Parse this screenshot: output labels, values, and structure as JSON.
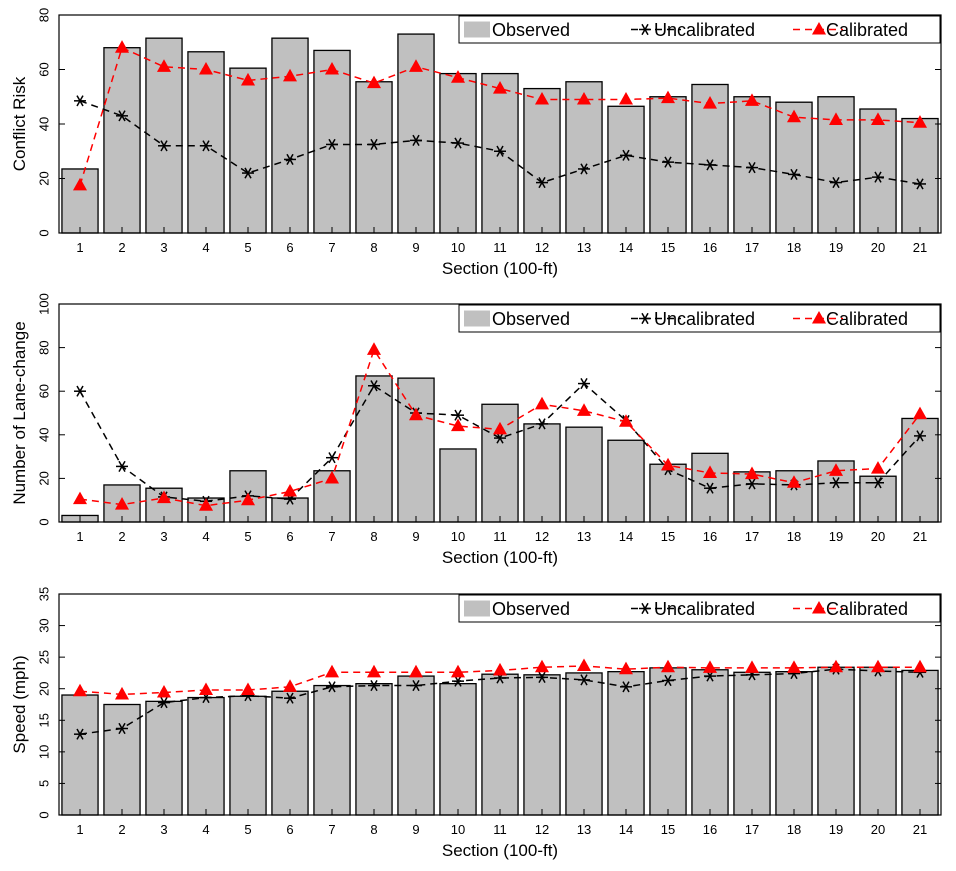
{
  "legend_labels": {
    "observed": "Observed",
    "uncalibrated": "Uncalibrated",
    "calibrated": "Calibrated"
  },
  "colors": {
    "observed_bar": "#c0c0c0",
    "bar_edge": "#000000",
    "uncalibrated": "#000000",
    "calibrated": "#ff0000"
  },
  "chart_data": [
    {
      "type": "bar",
      "xlabel": "Section (100-ft)",
      "ylabel": "Conflict Risk",
      "categories": [
        "1",
        "2",
        "3",
        "4",
        "5",
        "6",
        "7",
        "8",
        "9",
        "10",
        "11",
        "12",
        "13",
        "14",
        "15",
        "16",
        "17",
        "18",
        "19",
        "20",
        "21"
      ],
      "ylim": [
        0,
        80
      ],
      "yticks": [
        0,
        20,
        40,
        60,
        80
      ],
      "legend": "top-right",
      "grid": false,
      "series": [
        {
          "name": "Observed",
          "type": "bar",
          "values": [
            23.5,
            68,
            71.5,
            66.5,
            60.5,
            71.5,
            67,
            55.5,
            73,
            58.5,
            58.5,
            53,
            55.5,
            46.5,
            50,
            54.5,
            50,
            48,
            50,
            45.5,
            42
          ]
        },
        {
          "name": "Uncalibrated",
          "type": "line",
          "values": [
            48.5,
            43,
            32,
            32,
            22,
            27,
            32.5,
            32.5,
            34,
            33,
            30,
            18.5,
            23.5,
            28.5,
            26,
            25,
            24,
            21.5,
            18.5,
            20.5,
            18
          ]
        },
        {
          "name": "Calibrated",
          "type": "line",
          "values": [
            17.5,
            68,
            61,
            60,
            56,
            57.5,
            60,
            55,
            61,
            57,
            53,
            49,
            49,
            49,
            49.5,
            47.5,
            48.5,
            42.5,
            41.5,
            41.5,
            40.5
          ]
        }
      ]
    },
    {
      "type": "bar",
      "xlabel": "Section (100-ft)",
      "ylabel": "Number of Lane-change",
      "categories": [
        "1",
        "2",
        "3",
        "4",
        "5",
        "6",
        "7",
        "8",
        "9",
        "10",
        "11",
        "12",
        "13",
        "14",
        "15",
        "16",
        "17",
        "18",
        "19",
        "20",
        "21"
      ],
      "ylim": [
        0,
        100
      ],
      "yticks": [
        0,
        20,
        40,
        60,
        80,
        100
      ],
      "legend": "top-right",
      "grid": false,
      "series": [
        {
          "name": "Observed",
          "type": "bar",
          "values": [
            3,
            17,
            15.5,
            11,
            23.5,
            11,
            23.5,
            67,
            66,
            33.5,
            54,
            45,
            43.5,
            37.5,
            26.5,
            31.5,
            23,
            23.5,
            28,
            21,
            47.5
          ]
        },
        {
          "name": "Uncalibrated",
          "type": "line",
          "values": [
            60,
            25.5,
            11.5,
            9.5,
            12,
            10.5,
            29.5,
            62.5,
            50,
            49,
            38.5,
            45,
            63.5,
            46.5,
            24,
            15.5,
            17.5,
            17,
            18,
            18,
            39.5
          ]
        },
        {
          "name": "Calibrated",
          "type": "line",
          "values": [
            10.5,
            8,
            11,
            7.5,
            10,
            14,
            20,
            79,
            49,
            44,
            42.5,
            54,
            51,
            46,
            26,
            22.5,
            22,
            18,
            23.5,
            24.5,
            49.5
          ]
        }
      ]
    },
    {
      "type": "bar",
      "xlabel": "Section (100-ft)",
      "ylabel": "Speed (mph)",
      "categories": [
        "1",
        "2",
        "3",
        "4",
        "5",
        "6",
        "7",
        "8",
        "9",
        "10",
        "11",
        "12",
        "13",
        "14",
        "15",
        "16",
        "17",
        "18",
        "19",
        "20",
        "21"
      ],
      "ylim": [
        0,
        35
      ],
      "yticks": [
        0,
        5,
        10,
        15,
        20,
        25,
        30,
        35
      ],
      "legend": "top-right",
      "grid": false,
      "series": [
        {
          "name": "Observed",
          "type": "bar",
          "values": [
            19,
            17.5,
            18,
            18.6,
            18.8,
            19.6,
            20.5,
            20.8,
            22,
            20.8,
            22.3,
            22.2,
            22.5,
            22.7,
            23.3,
            23,
            22.6,
            22.7,
            23.4,
            23.4,
            22.9
          ]
        },
        {
          "name": "Uncalibrated",
          "type": "line",
          "values": [
            12.8,
            13.7,
            17.8,
            18.6,
            18.9,
            18.5,
            20.3,
            20.5,
            20.5,
            21.2,
            21.7,
            21.8,
            21.4,
            20.3,
            21.3,
            22,
            22.2,
            22.4,
            23.1,
            22.8,
            22.6
          ]
        },
        {
          "name": "Calibrated",
          "type": "line",
          "values": [
            19.6,
            19.1,
            19.4,
            19.8,
            19.8,
            20.3,
            22.6,
            22.6,
            22.6,
            22.6,
            22.9,
            23.4,
            23.6,
            23.1,
            23.4,
            23.3,
            23.3,
            23.3,
            23.4,
            23.4,
            23.4
          ]
        }
      ]
    }
  ]
}
